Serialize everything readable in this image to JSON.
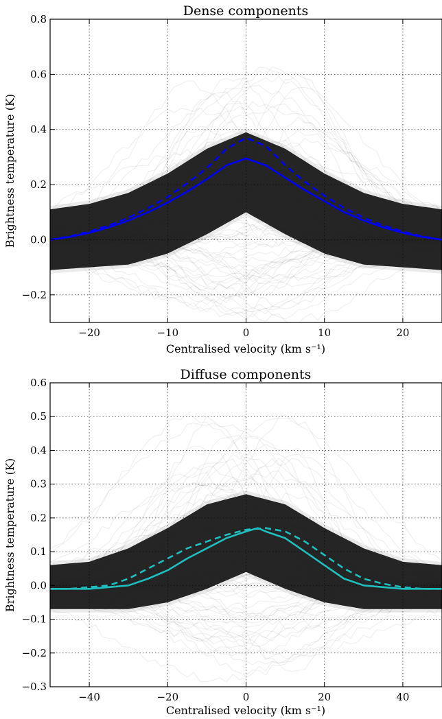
{
  "chart_data": [
    {
      "type": "line",
      "title": "Dense components",
      "xlabel": "Centralised velocity (km s⁻¹)",
      "ylabel": "Brightness temperature (K)",
      "xlim": [
        -25,
        25
      ],
      "ylim": [
        -0.3,
        0.8
      ],
      "xticks": [
        -20,
        -10,
        0,
        10,
        20
      ],
      "xtick_labels": [
        "−20",
        "−10",
        "0",
        "10",
        "20"
      ],
      "yticks": [
        -0.2,
        0.0,
        0.2,
        0.4,
        0.6,
        0.8
      ],
      "ytick_labels": [
        "−0.2",
        "0.0",
        "0.2",
        "0.4",
        "0.6",
        "0.8"
      ],
      "grid": true,
      "background": "individual spectra drawn as faint black lines",
      "band": {
        "x": [
          -25,
          -20,
          -15,
          -10,
          -5,
          0,
          5,
          10,
          15,
          20,
          25
        ],
        "upper": [
          0.11,
          0.13,
          0.17,
          0.24,
          0.33,
          0.39,
          0.33,
          0.24,
          0.17,
          0.13,
          0.11
        ],
        "lower": [
          -0.11,
          -0.1,
          -0.09,
          -0.05,
          0.02,
          0.1,
          0.02,
          -0.05,
          -0.09,
          -0.1,
          -0.11
        ]
      },
      "series": [
        {
          "style": "solid",
          "color": "#0000ff",
          "x": [
            -25,
            -22.5,
            -20,
            -17.5,
            -15,
            -12.5,
            -10,
            -7.5,
            -5,
            -2.5,
            0,
            2.5,
            5,
            7.5,
            10,
            12.5,
            15,
            17.5,
            20,
            22.5,
            25
          ],
          "values": [
            0.0,
            0.01,
            0.025,
            0.045,
            0.07,
            0.1,
            0.135,
            0.175,
            0.22,
            0.27,
            0.295,
            0.27,
            0.225,
            0.18,
            0.14,
            0.1,
            0.07,
            0.045,
            0.025,
            0.01,
            0.0
          ]
        },
        {
          "style": "dashed",
          "color": "#0000ff",
          "x": [
            -25,
            -22.5,
            -20,
            -17.5,
            -15,
            -12.5,
            -10,
            -7.5,
            -5,
            -2.5,
            0,
            2.5,
            5,
            7.5,
            10,
            12.5,
            15,
            17.5,
            20,
            22.5,
            25
          ],
          "values": [
            0.0,
            0.012,
            0.03,
            0.052,
            0.08,
            0.115,
            0.155,
            0.205,
            0.26,
            0.33,
            0.37,
            0.34,
            0.27,
            0.21,
            0.16,
            0.115,
            0.08,
            0.052,
            0.03,
            0.012,
            0.0
          ]
        }
      ]
    },
    {
      "type": "line",
      "title": "Diffuse components",
      "xlabel": "Centralised velocity (km s⁻¹)",
      "ylabel": "Brightness temperature (K)",
      "xlim": [
        -50,
        50
      ],
      "ylim": [
        -0.3,
        0.6
      ],
      "xticks": [
        -40,
        -20,
        0,
        20,
        40
      ],
      "xtick_labels": [
        "−40",
        "−20",
        "0",
        "20",
        "40"
      ],
      "yticks": [
        -0.3,
        -0.2,
        -0.1,
        0.0,
        0.1,
        0.2,
        0.3,
        0.4,
        0.5,
        0.6
      ],
      "ytick_labels": [
        "−0.3",
        "−0.2",
        "−0.1",
        "0.0",
        "0.1",
        "0.2",
        "0.3",
        "0.4",
        "0.5",
        "0.6"
      ],
      "grid": true,
      "background": "individual spectra drawn as faint black lines",
      "band": {
        "x": [
          -50,
          -40,
          -30,
          -20,
          -10,
          0,
          10,
          20,
          30,
          40,
          50
        ],
        "upper": [
          0.06,
          0.07,
          0.11,
          0.17,
          0.24,
          0.27,
          0.24,
          0.17,
          0.11,
          0.07,
          0.06
        ],
        "lower": [
          -0.07,
          -0.07,
          -0.07,
          -0.05,
          -0.01,
          0.04,
          -0.01,
          -0.05,
          -0.07,
          -0.07,
          -0.07
        ]
      },
      "series": [
        {
          "style": "solid",
          "color": "#1fbfbf",
          "x": [
            -50,
            -45,
            -40,
            -35,
            -30,
            -25,
            -20,
            -15,
            -10,
            -5,
            0,
            3,
            5,
            10,
            15,
            20,
            25,
            30,
            35,
            40,
            45,
            50
          ],
          "values": [
            -0.01,
            -0.01,
            -0.01,
            -0.005,
            0.0,
            0.02,
            0.045,
            0.08,
            0.11,
            0.14,
            0.16,
            0.17,
            0.16,
            0.14,
            0.1,
            0.06,
            0.02,
            0.0,
            -0.005,
            -0.01,
            -0.01,
            -0.01
          ]
        },
        {
          "style": "dashed",
          "color": "#1fbfbf",
          "x": [
            -50,
            -45,
            -40,
            -35,
            -30,
            -25,
            -20,
            -15,
            -10,
            -5,
            0,
            5,
            10,
            15,
            20,
            25,
            30,
            35,
            40,
            45,
            50
          ],
          "values": [
            -0.01,
            -0.01,
            -0.005,
            0.0,
            0.02,
            0.05,
            0.08,
            0.11,
            0.13,
            0.15,
            0.165,
            0.17,
            0.16,
            0.13,
            0.09,
            0.05,
            0.02,
            0.005,
            -0.005,
            -0.01,
            -0.01
          ]
        }
      ]
    }
  ]
}
